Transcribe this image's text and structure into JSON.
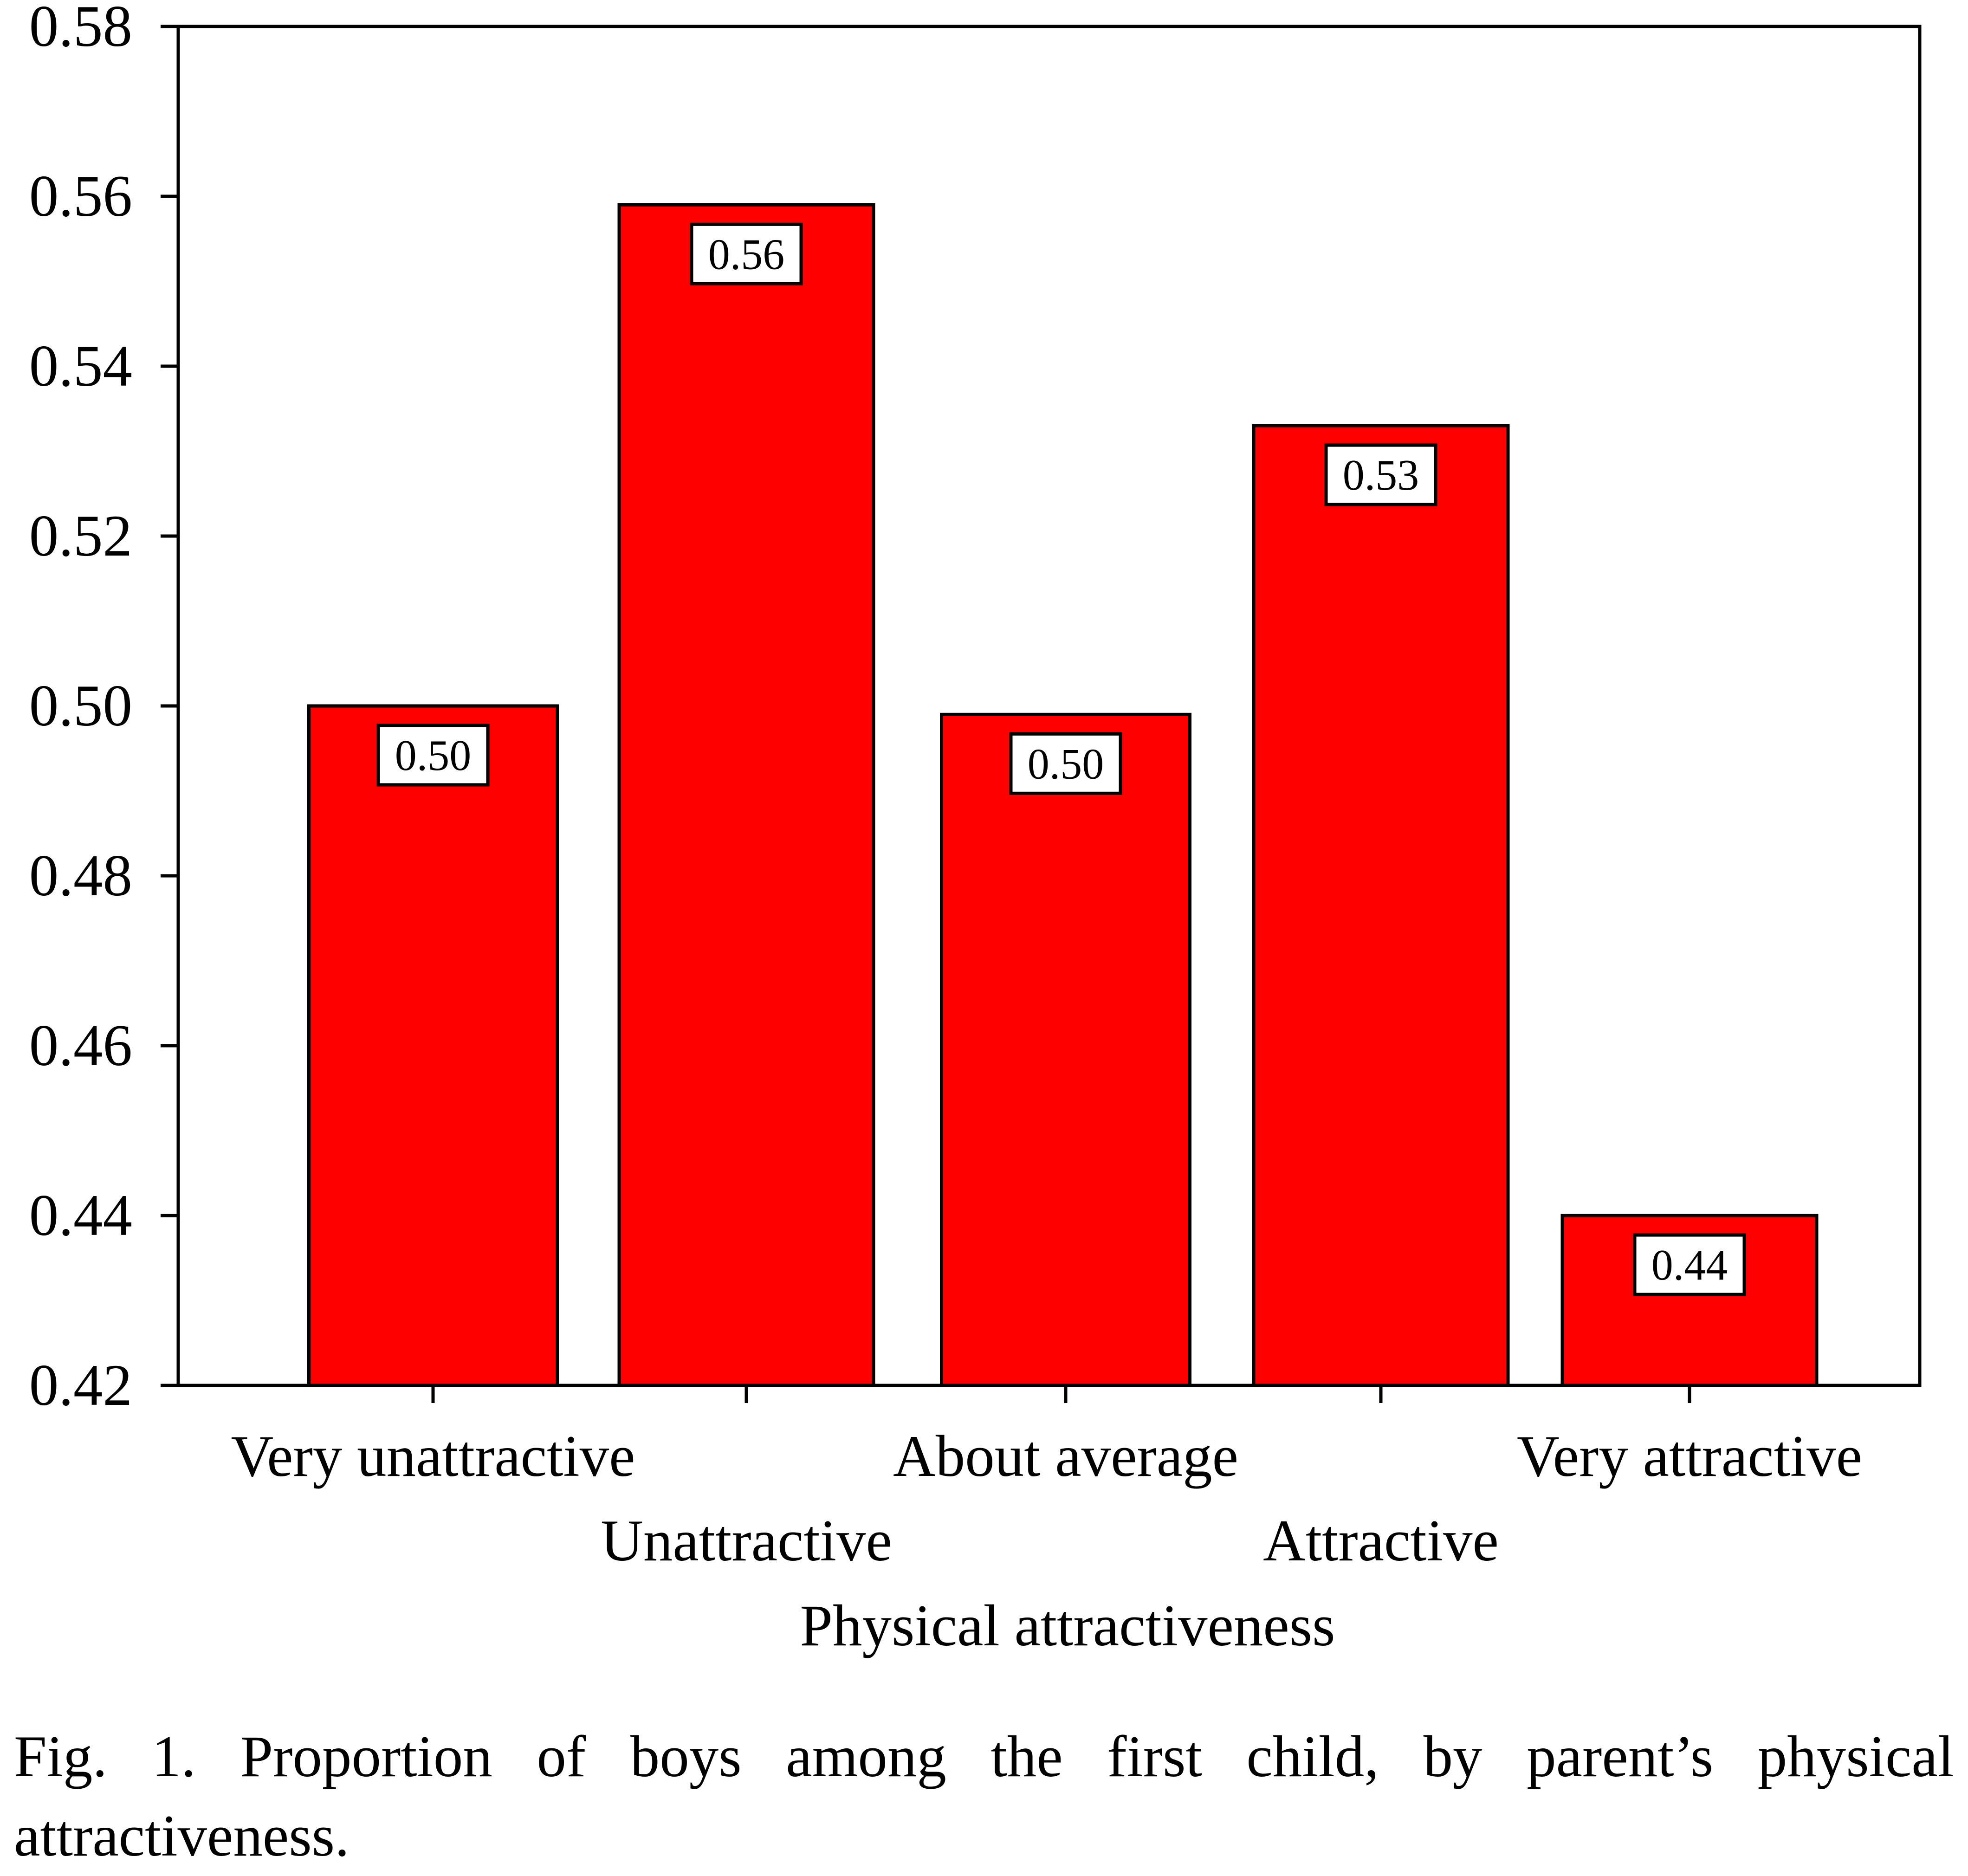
{
  "chart_data": {
    "type": "bar",
    "categories": [
      "Very unattractive",
      "Unattractive",
      "About average",
      "Attractive",
      "Very attractive"
    ],
    "values": [
      0.5,
      0.559,
      0.499,
      0.533,
      0.44
    ],
    "data_labels": [
      "0.50",
      "0.56",
      "0.50",
      "0.53",
      "0.44"
    ],
    "xlabel": "Physical attractiveness",
    "ylabel": "",
    "ylim": [
      0.42,
      0.58
    ],
    "yticks": [
      0.42,
      0.44,
      0.46,
      0.48,
      0.5,
      0.52,
      0.54,
      0.56,
      0.58
    ],
    "ytick_labels": [
      "0.42",
      "0.44",
      "0.46",
      "0.48",
      "0.50",
      "0.52",
      "0.54",
      "0.56",
      "0.58"
    ],
    "grid": false,
    "legend": "none",
    "bar_color": "#ff0000"
  },
  "caption": "Fig. 1. Proportion of boys among the first child, by parent’s physical attractiveness."
}
